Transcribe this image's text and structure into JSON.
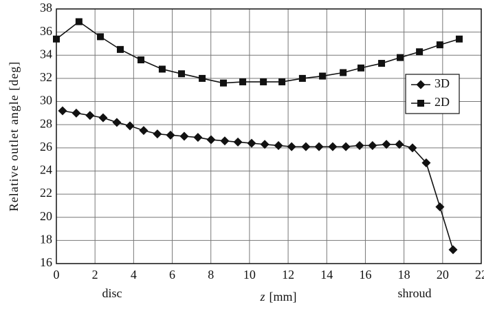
{
  "chart_data": {
    "type": "line",
    "x_label_var": "z",
    "x_label_unit": "[mm]",
    "ylabel": "Relative outlet angle  [deg]",
    "annotations": [
      "disc",
      "shroud"
    ],
    "xlim": [
      0,
      22
    ],
    "xticks": [
      0,
      2,
      4,
      6,
      8,
      10,
      12,
      14,
      16,
      18,
      20,
      22
    ],
    "ylim": [
      16,
      38
    ],
    "yticks": [
      16,
      18,
      20,
      22,
      24,
      26,
      28,
      30,
      32,
      34,
      36,
      38
    ],
    "grid": true,
    "legend": "right",
    "series": [
      {
        "name": "3D",
        "color": "#111111",
        "marker": "diamond",
        "x": [
          0.32,
          1.03,
          1.74,
          2.42,
          3.13,
          3.81,
          4.52,
          5.23,
          5.91,
          6.62,
          7.33,
          8.01,
          8.72,
          9.4,
          10.11,
          10.79,
          11.5,
          12.18,
          12.92,
          13.6,
          14.31,
          14.99,
          15.7,
          16.37,
          17.09,
          17.76,
          18.44,
          19.15,
          19.86,
          20.54
        ],
        "values": [
          29.2,
          29.0,
          28.8,
          28.6,
          28.2,
          27.9,
          27.5,
          27.2,
          27.1,
          27.0,
          26.9,
          26.7,
          26.6,
          26.5,
          26.4,
          26.3,
          26.2,
          26.1,
          26.1,
          26.1,
          26.1,
          26.1,
          26.2,
          26.2,
          26.3,
          26.3,
          26.0,
          24.7,
          20.9,
          17.2
        ]
      },
      {
        "name": "2D",
        "color": "#111111",
        "marker": "square",
        "x": [
          0,
          1.17,
          2.28,
          3.31,
          4.38,
          5.48,
          6.48,
          7.55,
          8.65,
          9.65,
          10.72,
          11.68,
          12.74,
          13.78,
          14.85,
          15.77,
          16.84,
          17.8,
          18.8,
          19.86,
          20.86
        ],
        "values": [
          35.4,
          36.9,
          35.6,
          34.5,
          33.6,
          32.8,
          32.4,
          32.0,
          31.6,
          31.7,
          31.7,
          31.7,
          32.0,
          32.2,
          32.5,
          32.9,
          33.3,
          33.8,
          34.3,
          34.9,
          35.4
        ]
      }
    ]
  }
}
